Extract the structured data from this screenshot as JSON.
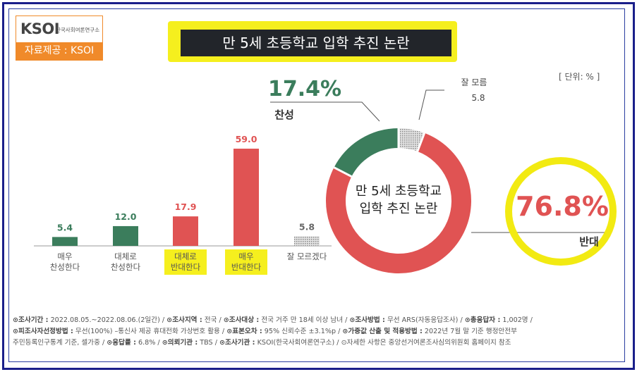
{
  "logo": {
    "mark": "KSOI",
    "sub": "한국사회여론연구소",
    "source_label": "자료제공 : KSOI"
  },
  "title": "만 5세 초등학교 입학 추진 논란",
  "unit": "[ 단위: % ]",
  "chart_data": [
    {
      "type": "bar",
      "categories": [
        "매우\n찬성한다",
        "대체로\n찬성한다",
        "대체로\n반대한다",
        "매우\n반대한다",
        "잘 모르겠다"
      ],
      "values": [
        5.4,
        12.0,
        17.9,
        59.0,
        5.8
      ],
      "value_labels": [
        "5.4",
        "12.0",
        "17.9",
        "59.0",
        "5.8"
      ],
      "highlighted_categories": [
        2,
        3
      ],
      "colors": {
        "support": "#3b7d5c",
        "oppose": "#e05353",
        "unsure": "#bdbdbd",
        "highlight": "#f5ef1e"
      }
    },
    {
      "type": "pie",
      "style": "donut",
      "center_label": [
        "만 5세 초등학교",
        "입학 추진 논란"
      ],
      "slices": [
        {
          "label": "찬성",
          "value": 17.4,
          "display": "17.4%",
          "color": "#3b7d5c"
        },
        {
          "label": "잘 모름",
          "value": 5.8,
          "display": "5.8",
          "color": "#bdbdbd"
        },
        {
          "label": "반대",
          "value": 76.8,
          "display": "76.8%",
          "color": "#e05353"
        }
      ]
    }
  ],
  "footnote": [
    [
      {
        "b": "⊙조사기간 :"
      },
      {
        "t": " 2022.08.05.~2022.08.06.(2일간) / "
      },
      {
        "b": "⊙조사지역 :"
      },
      {
        "t": " 전국 / "
      },
      {
        "b": "⊙조사대상 :"
      },
      {
        "t": " 전국 거주 만 18세 이상 남녀 / "
      },
      {
        "b": "⊙조사방법 :"
      },
      {
        "t": " 무선 ARS(자동응답조사) / "
      },
      {
        "b": "⊙총응답자 :"
      },
      {
        "t": " 1,002명 /"
      }
    ],
    [
      {
        "b": "⊙피조사자선정방법 :"
      },
      {
        "t": " 무선(100%) –통신사 제공 휴대전화 가상번호 활용 / "
      },
      {
        "b": "⊙표본오차 :"
      },
      {
        "t": " 95% 신뢰수준 ±3.1%p / "
      },
      {
        "b": "⊙가중값 산출 및 적용방법 :"
      },
      {
        "t": " 2022년 7월 말 기준 행정안전부"
      }
    ],
    [
      {
        "t": "주민등록인구통계 기준, 셀가중 / "
      },
      {
        "b": "⊙응답률 :"
      },
      {
        "t": " 6.8% / "
      },
      {
        "b": "⊙의뢰기관 :"
      },
      {
        "t": " TBS / "
      },
      {
        "b": "⊙조사기관 :"
      },
      {
        "t": " KSOI(한국사회여론연구소) / ⊙자세한 사항은 중앙선거여론조사심의위원회 홈페이지 참조"
      }
    ]
  ]
}
